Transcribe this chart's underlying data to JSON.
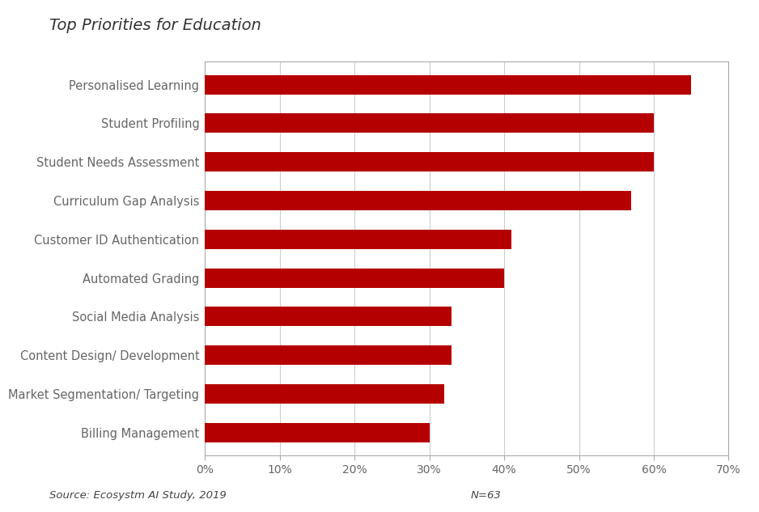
{
  "title": "Top Priorities for Education",
  "categories": [
    "Billing Management",
    "Market Segmentation/ Targeting",
    "Content Design/ Development",
    "Social Media Analysis",
    "Automated Grading",
    "Customer ID Authentication",
    "Curriculum Gap Analysis",
    "Student Needs Assessment",
    "Student Profiling",
    "Personalised Learning"
  ],
  "values": [
    0.3,
    0.32,
    0.33,
    0.33,
    0.4,
    0.41,
    0.57,
    0.6,
    0.6,
    0.65
  ],
  "bar_color": "#b50000",
  "xlim": [
    0,
    0.7
  ],
  "xticks": [
    0.0,
    0.1,
    0.2,
    0.3,
    0.4,
    0.5,
    0.6,
    0.7
  ],
  "xtick_labels": [
    "0%",
    "10%",
    "20%",
    "30%",
    "40%",
    "50%",
    "60%",
    "70%"
  ],
  "source_text": "Source: Ecosystm AI Study, 2019",
  "n_text": "N=63",
  "background_color": "#ffffff",
  "plot_bg_color": "#ffffff",
  "title_fontsize": 14,
  "label_fontsize": 10.5,
  "tick_fontsize": 10,
  "source_fontsize": 9.5,
  "bar_height": 0.5
}
